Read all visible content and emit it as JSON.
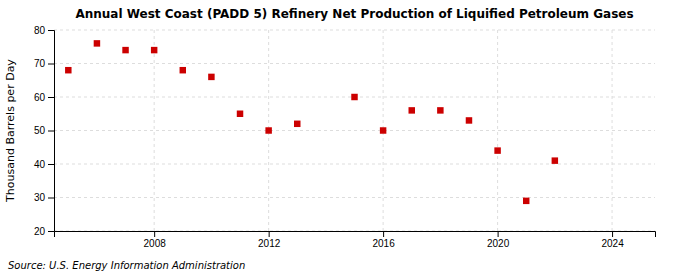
{
  "chart_data": {
    "type": "scatter",
    "title": "Annual West Coast (PADD 5) Refinery Net Production of Liquified Petroleum Gases",
    "ylabel": "Thousand Barrels per Day",
    "source": "Source: U.S. Energy Information Administration",
    "x": [
      2005,
      2006,
      2007,
      2008,
      2009,
      2010,
      2011,
      2012,
      2013,
      2015,
      2016,
      2017,
      2018,
      2019,
      2020,
      2021,
      2022
    ],
    "values": [
      68,
      76,
      74,
      74,
      68,
      66,
      55,
      50,
      52,
      60,
      50,
      56,
      56,
      53,
      44,
      29,
      41
    ],
    "xlim": [
      2004.5,
      2025.5
    ],
    "ylim": [
      20,
      80
    ],
    "xticks": [
      2008,
      2012,
      2016,
      2020,
      2024
    ],
    "yticks": [
      20,
      30,
      40,
      50,
      60,
      70,
      80
    ],
    "color": "#cc0000",
    "marker": "square",
    "grid": true
  }
}
